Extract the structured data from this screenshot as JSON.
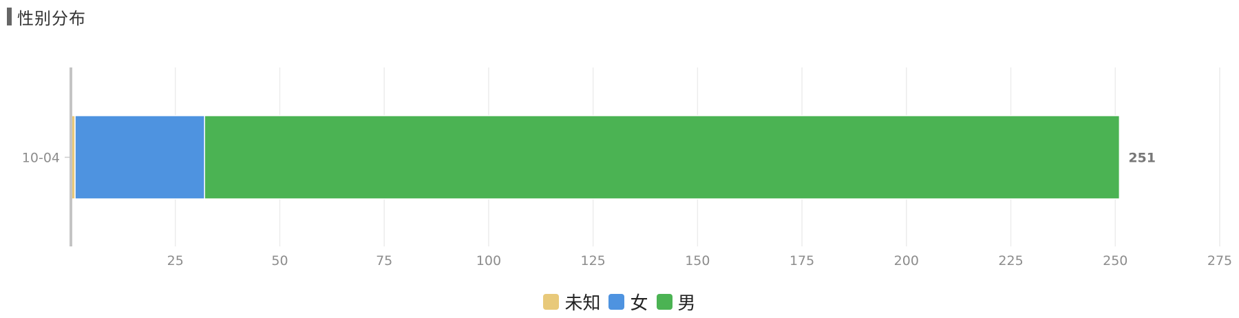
{
  "header": {
    "title": "性别分布"
  },
  "chart_data": {
    "type": "bar",
    "orientation": "horizontal",
    "stacked": true,
    "categories": [
      "10-04"
    ],
    "series": [
      {
        "name": "未知",
        "values": [
          1
        ],
        "color": "#e8c97a"
      },
      {
        "name": "女",
        "values": [
          31
        ],
        "color": "#4e93e0"
      },
      {
        "name": "男",
        "values": [
          219
        ],
        "color": "#4bb353"
      }
    ],
    "totals": [
      251
    ],
    "total_labels": [
      "251"
    ],
    "xlim": [
      0,
      275
    ],
    "xticks": [
      25,
      50,
      75,
      100,
      125,
      150,
      175,
      200,
      225,
      250,
      275
    ],
    "grid": true,
    "legend_position": "bottom"
  }
}
